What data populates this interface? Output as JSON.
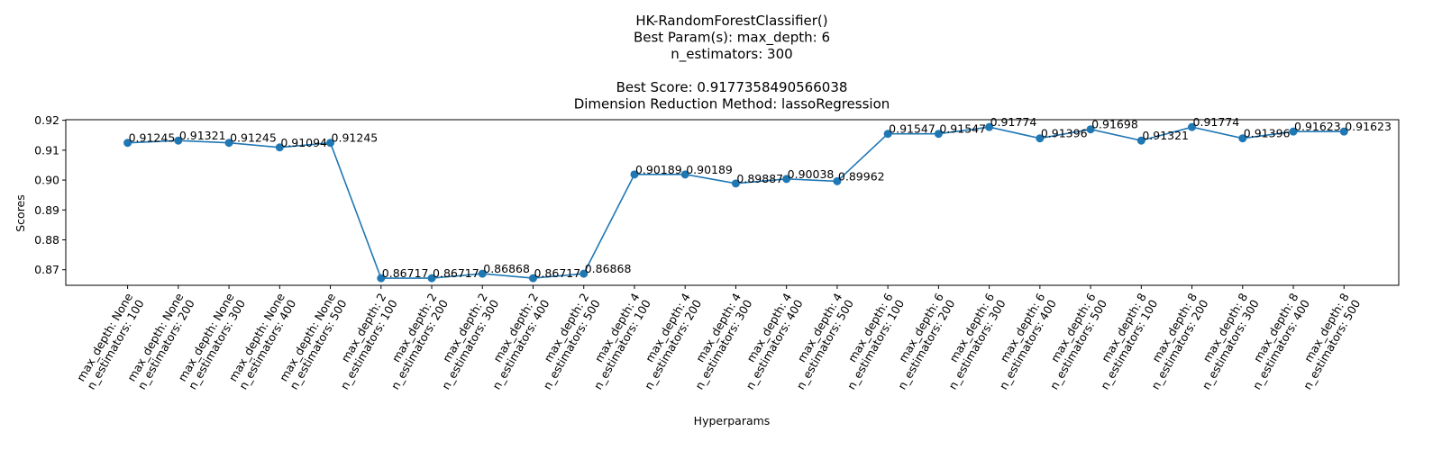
{
  "chart_data": {
    "type": "line",
    "title_lines": [
      "HK-RandomForestClassifier()",
      "Best Param(s): max_depth: 6",
      "n_estimators: 300",
      "",
      "Best Score: 0.9177358490566038",
      "Dimension Reduction Method: lassoRegression"
    ],
    "xlabel": "Hyperparams",
    "ylabel": "Scores",
    "ylim": [
      0.8648,
      0.9202
    ],
    "yticks": [
      "0.87",
      "0.88",
      "0.89",
      "0.90",
      "0.91",
      "0.92"
    ],
    "grid": false,
    "color": "#1f77b4",
    "categories": [
      [
        "max_depth: None",
        "n_estimators: 100"
      ],
      [
        "max_depth: None",
        "n_estimators: 200"
      ],
      [
        "max_depth: None",
        "n_estimators: 300"
      ],
      [
        "max_depth: None",
        "n_estimators: 400"
      ],
      [
        "max_depth: None",
        "n_estimators: 500"
      ],
      [
        "max_depth: 2",
        "n_estimators: 100"
      ],
      [
        "max_depth: 2",
        "n_estimators: 200"
      ],
      [
        "max_depth: 2",
        "n_estimators: 300"
      ],
      [
        "max_depth: 2",
        "n_estimators: 400"
      ],
      [
        "max_depth: 2",
        "n_estimators: 500"
      ],
      [
        "max_depth: 4",
        "n_estimators: 100"
      ],
      [
        "max_depth: 4",
        "n_estimators: 200"
      ],
      [
        "max_depth: 4",
        "n_estimators: 300"
      ],
      [
        "max_depth: 4",
        "n_estimators: 400"
      ],
      [
        "max_depth: 4",
        "n_estimators: 500"
      ],
      [
        "max_depth: 6",
        "n_estimators: 100"
      ],
      [
        "max_depth: 6",
        "n_estimators: 200"
      ],
      [
        "max_depth: 6",
        "n_estimators: 300"
      ],
      [
        "max_depth: 6",
        "n_estimators: 400"
      ],
      [
        "max_depth: 6",
        "n_estimators: 500"
      ],
      [
        "max_depth: 8",
        "n_estimators: 100"
      ],
      [
        "max_depth: 8",
        "n_estimators: 200"
      ],
      [
        "max_depth: 8",
        "n_estimators: 300"
      ],
      [
        "max_depth: 8",
        "n_estimators: 400"
      ],
      [
        "max_depth: 8",
        "n_estimators: 500"
      ]
    ],
    "values": [
      0.91245,
      0.91321,
      0.91245,
      0.91094,
      0.91245,
      0.86717,
      0.86717,
      0.86868,
      0.86717,
      0.86868,
      0.90189,
      0.90189,
      0.89887,
      0.90038,
      0.89962,
      0.91547,
      0.91547,
      0.91774,
      0.91396,
      0.91698,
      0.91321,
      0.91774,
      0.91396,
      0.91623,
      0.91623
    ],
    "value_labels": [
      "0.91245",
      "0.91321",
      "0.91245",
      "0.91094",
      "0.91245",
      "0.86717",
      "0.86717",
      "0.86868",
      "0.86717",
      "0.86868",
      "0.90189",
      "0.90189",
      "0.89887",
      "0.90038",
      "0.89962",
      "0.91547",
      "0.91547",
      "0.91774",
      "0.91396",
      "0.91698",
      "0.91321",
      "0.91774",
      "0.91396",
      "0.91623",
      "0.91623"
    ]
  }
}
